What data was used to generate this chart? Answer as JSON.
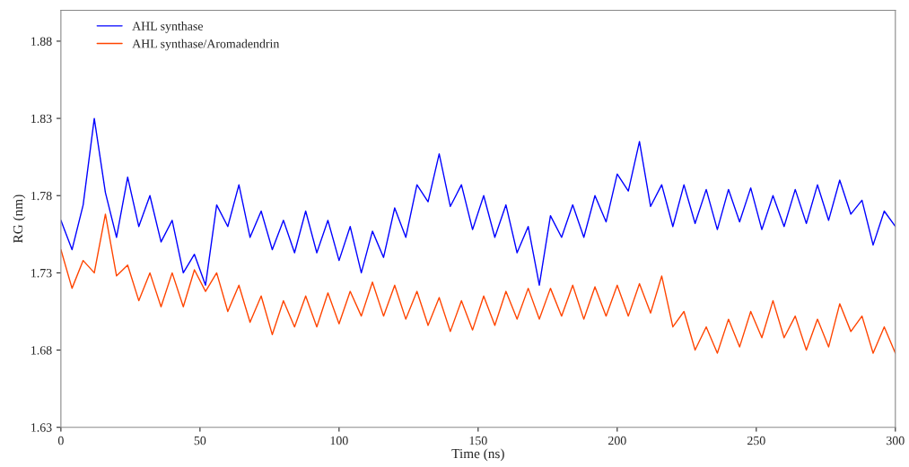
{
  "chart_data": {
    "type": "line",
    "xlabel": "Time (ns)",
    "ylabel": "RG (nm)",
    "x": [
      0,
      4,
      8,
      12,
      16,
      20,
      24,
      28,
      32,
      36,
      40,
      44,
      48,
      52,
      56,
      60,
      64,
      68,
      72,
      76,
      80,
      84,
      88,
      92,
      96,
      100,
      104,
      108,
      112,
      116,
      120,
      124,
      128,
      132,
      136,
      140,
      144,
      148,
      152,
      156,
      160,
      164,
      168,
      172,
      176,
      180,
      184,
      188,
      192,
      196,
      200,
      204,
      208,
      212,
      216,
      220,
      224,
      228,
      232,
      236,
      240,
      244,
      248,
      252,
      256,
      260,
      264,
      268,
      272,
      276,
      280,
      284,
      288,
      292,
      296,
      300
    ],
    "series": [
      {
        "name": "AHL synthase",
        "color": "#0000ff",
        "values": [
          1.764,
          1.745,
          1.774,
          1.83,
          1.782,
          1.753,
          1.792,
          1.76,
          1.78,
          1.75,
          1.764,
          1.73,
          1.742,
          1.722,
          1.774,
          1.76,
          1.787,
          1.753,
          1.77,
          1.745,
          1.764,
          1.743,
          1.77,
          1.743,
          1.764,
          1.738,
          1.76,
          1.73,
          1.757,
          1.74,
          1.772,
          1.753,
          1.787,
          1.776,
          1.807,
          1.773,
          1.787,
          1.758,
          1.78,
          1.753,
          1.774,
          1.743,
          1.76,
          1.722,
          1.767,
          1.753,
          1.774,
          1.753,
          1.78,
          1.763,
          1.794,
          1.783,
          1.815,
          1.773,
          1.787,
          1.76,
          1.787,
          1.762,
          1.784,
          1.758,
          1.784,
          1.763,
          1.785,
          1.758,
          1.78,
          1.76,
          1.784,
          1.762,
          1.787,
          1.764,
          1.79,
          1.768,
          1.777,
          1.748,
          1.77,
          1.76
        ]
      },
      {
        "name": "AHL synthase/Aromadendrin",
        "color": "#ff4500",
        "values": [
          1.745,
          1.72,
          1.738,
          1.73,
          1.768,
          1.728,
          1.735,
          1.712,
          1.73,
          1.708,
          1.73,
          1.708,
          1.732,
          1.718,
          1.73,
          1.705,
          1.722,
          1.698,
          1.715,
          1.69,
          1.712,
          1.695,
          1.715,
          1.695,
          1.717,
          1.697,
          1.718,
          1.702,
          1.724,
          1.702,
          1.722,
          1.7,
          1.718,
          1.696,
          1.714,
          1.692,
          1.712,
          1.693,
          1.715,
          1.696,
          1.718,
          1.7,
          1.72,
          1.7,
          1.72,
          1.702,
          1.722,
          1.7,
          1.721,
          1.702,
          1.722,
          1.702,
          1.723,
          1.704,
          1.728,
          1.695,
          1.705,
          1.68,
          1.695,
          1.678,
          1.7,
          1.682,
          1.705,
          1.688,
          1.712,
          1.688,
          1.702,
          1.68,
          1.7,
          1.682,
          1.71,
          1.692,
          1.702,
          1.678,
          1.695,
          1.678
        ]
      }
    ],
    "xlim": [
      0,
      300
    ],
    "xticks": [
      0,
      50,
      100,
      150,
      200,
      250,
      300
    ],
    "ylim": [
      1.63,
      1.9
    ],
    "yticks": [
      {
        "value": 1.63,
        "label": "1.63"
      },
      {
        "value": 1.68,
        "label": "1.68"
      },
      {
        "value": 1.73,
        "label": "1.73"
      },
      {
        "value": 1.78,
        "label": "1.78"
      },
      {
        "value": 1.83,
        "label": "1.83"
      },
      {
        "value": 1.88,
        "label": "1.88"
      }
    ],
    "grid": false,
    "legend": "top left",
    "marker": "none",
    "line_style": "solid"
  }
}
